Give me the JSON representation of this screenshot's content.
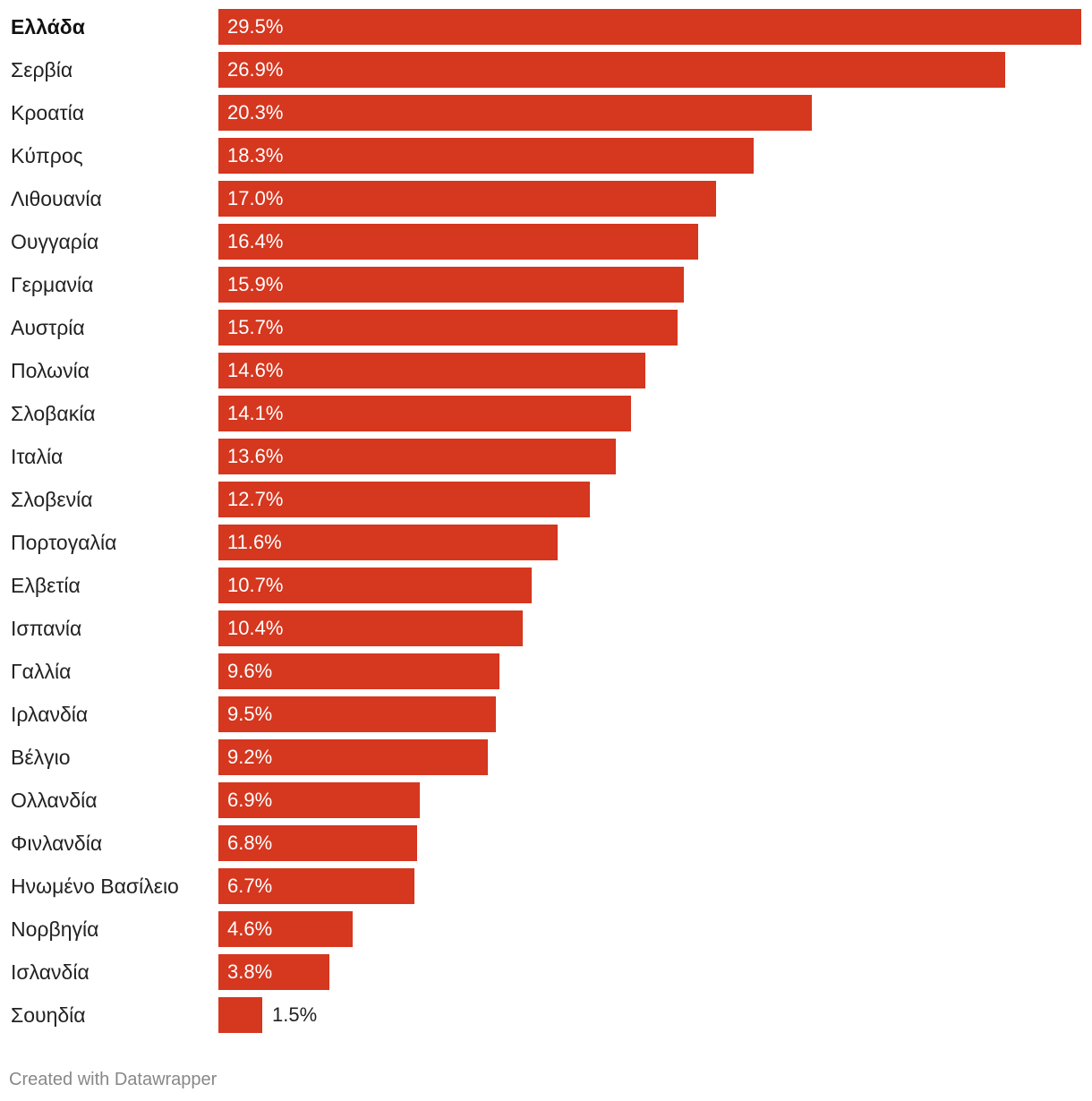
{
  "chart_data": {
    "type": "bar",
    "orientation": "horizontal",
    "bar_color": "#d5371f",
    "highlight_category": "Ελλάδα",
    "unit": "%",
    "categories": [
      "Ελλάδα",
      "Σερβία",
      "Κροατία",
      "Κύπρος",
      "Λιθουανία",
      "Ουγγαρία",
      "Γερμανία",
      "Αυστρία",
      "Πολωνία",
      "Σλοβακία",
      "Ιταλία",
      "Σλοβενία",
      "Πορτογαλία",
      "Ελβετία",
      "Ισπανία",
      "Γαλλία",
      "Ιρλανδία",
      "Βέλγιο",
      "Ολλανδία",
      "Φινλανδία",
      "Ηνωμένο Βασίλειο",
      "Νορβηγία",
      "Ισλανδία",
      "Σουηδία"
    ],
    "values": [
      29.5,
      26.9,
      20.3,
      18.3,
      17.0,
      16.4,
      15.9,
      15.7,
      14.6,
      14.1,
      13.6,
      12.7,
      11.6,
      10.7,
      10.4,
      9.6,
      9.5,
      9.2,
      6.9,
      6.8,
      6.7,
      4.6,
      3.8,
      1.5
    ],
    "value_labels": [
      "29.5%",
      "26.9%",
      "20.3%",
      "18.3%",
      "17.0%",
      "16.4%",
      "15.9%",
      "15.7%",
      "14.6%",
      "14.1%",
      "13.6%",
      "12.7%",
      "11.6%",
      "10.7%",
      "10.4%",
      "9.6%",
      "9.5%",
      "9.2%",
      "6.9%",
      "6.8%",
      "6.7%",
      "4.6%",
      "3.8%",
      "1.5%"
    ],
    "xlim": [
      0,
      29.5
    ],
    "grid": false
  },
  "credit": "Created with Datawrapper"
}
